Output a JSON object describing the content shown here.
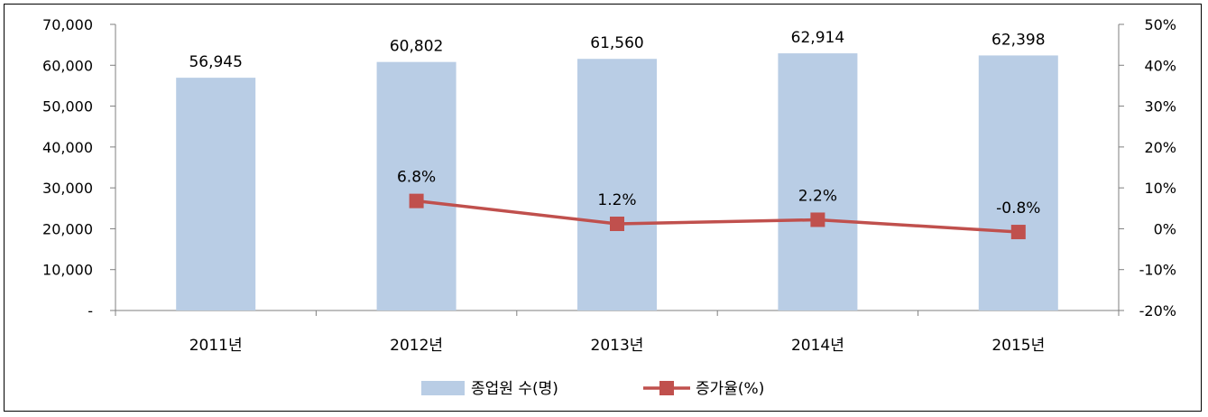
{
  "chart_data": {
    "type": "bar+line",
    "categories": [
      "2011년",
      "2012년",
      "2013년",
      "2014년",
      "2015년"
    ],
    "series": [
      {
        "name": "종업원 수(명)",
        "type": "bar",
        "axis": "left",
        "color": "#b9cde5",
        "values": [
          56945,
          60802,
          61560,
          62914,
          62398
        ],
        "labels": [
          "56,945",
          "60,802",
          "61,560",
          "62,914",
          "62,398"
        ]
      },
      {
        "name": "증가율(%)",
        "type": "line",
        "axis": "right",
        "color": "#c0504d",
        "values": [
          null,
          6.8,
          1.2,
          2.2,
          -0.8
        ],
        "labels": [
          null,
          "6.8%",
          "1.2%",
          "2.2%",
          "-0.8%"
        ]
      }
    ],
    "left_axis": {
      "ylim": [
        0,
        70000
      ],
      "ticks": [
        0,
        10000,
        20000,
        30000,
        40000,
        50000,
        60000,
        70000
      ],
      "tick_labels": [
        "-",
        "10,000",
        "20,000",
        "30,000",
        "40,000",
        "50,000",
        "60,000",
        "70,000"
      ]
    },
    "right_axis": {
      "ylim": [
        -20,
        50
      ],
      "ticks": [
        -20,
        -10,
        0,
        10,
        20,
        30,
        40,
        50
      ],
      "tick_labels": [
        "-20%",
        "-10%",
        "0%",
        "10%",
        "20%",
        "30%",
        "40%",
        "50%"
      ]
    },
    "legend_position": "bottom",
    "grid": false
  }
}
